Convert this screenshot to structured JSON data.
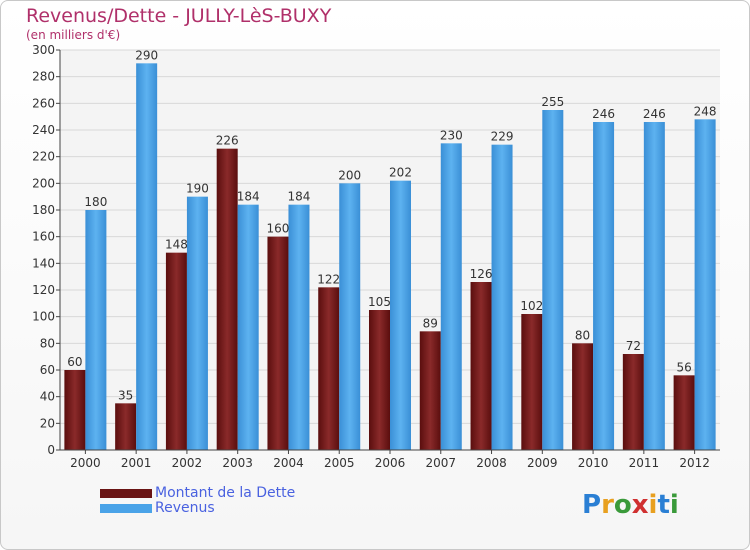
{
  "chart_data": {
    "type": "bar",
    "title": "Revenus/Dette - JULLY-LèS-BUXY",
    "subtitle": "(en milliers d'€)",
    "categories": [
      "2000",
      "2001",
      "2002",
      "2003",
      "2004",
      "2005",
      "2006",
      "2007",
      "2008",
      "2009",
      "2010",
      "2011",
      "2012"
    ],
    "series": [
      {
        "name": "Montant de la Dette",
        "color": "#7a1c1c",
        "values": [
          60,
          35,
          148,
          226,
          160,
          122,
          105,
          89,
          126,
          102,
          80,
          72,
          56
        ]
      },
      {
        "name": "Revenus",
        "color": "#4aa3e8",
        "values": [
          180,
          290,
          190,
          184,
          184,
          200,
          202,
          230,
          229,
          255,
          246,
          246,
          248
        ]
      }
    ],
    "ylim": [
      0,
      300
    ],
    "yticks": [
      0,
      20,
      40,
      60,
      80,
      100,
      120,
      140,
      160,
      180,
      200,
      220,
      240,
      260,
      280,
      300
    ],
    "grid": true,
    "legend": "bottom-left"
  },
  "logo": {
    "letters": [
      "P",
      "r",
      "o",
      "x",
      "i",
      "t",
      "i"
    ],
    "colors": [
      "#2a7fd4",
      "#e8a020",
      "#3a9a3a",
      "#d03030",
      "#e8a020",
      "#2a7fd4",
      "#3a9a3a"
    ]
  }
}
